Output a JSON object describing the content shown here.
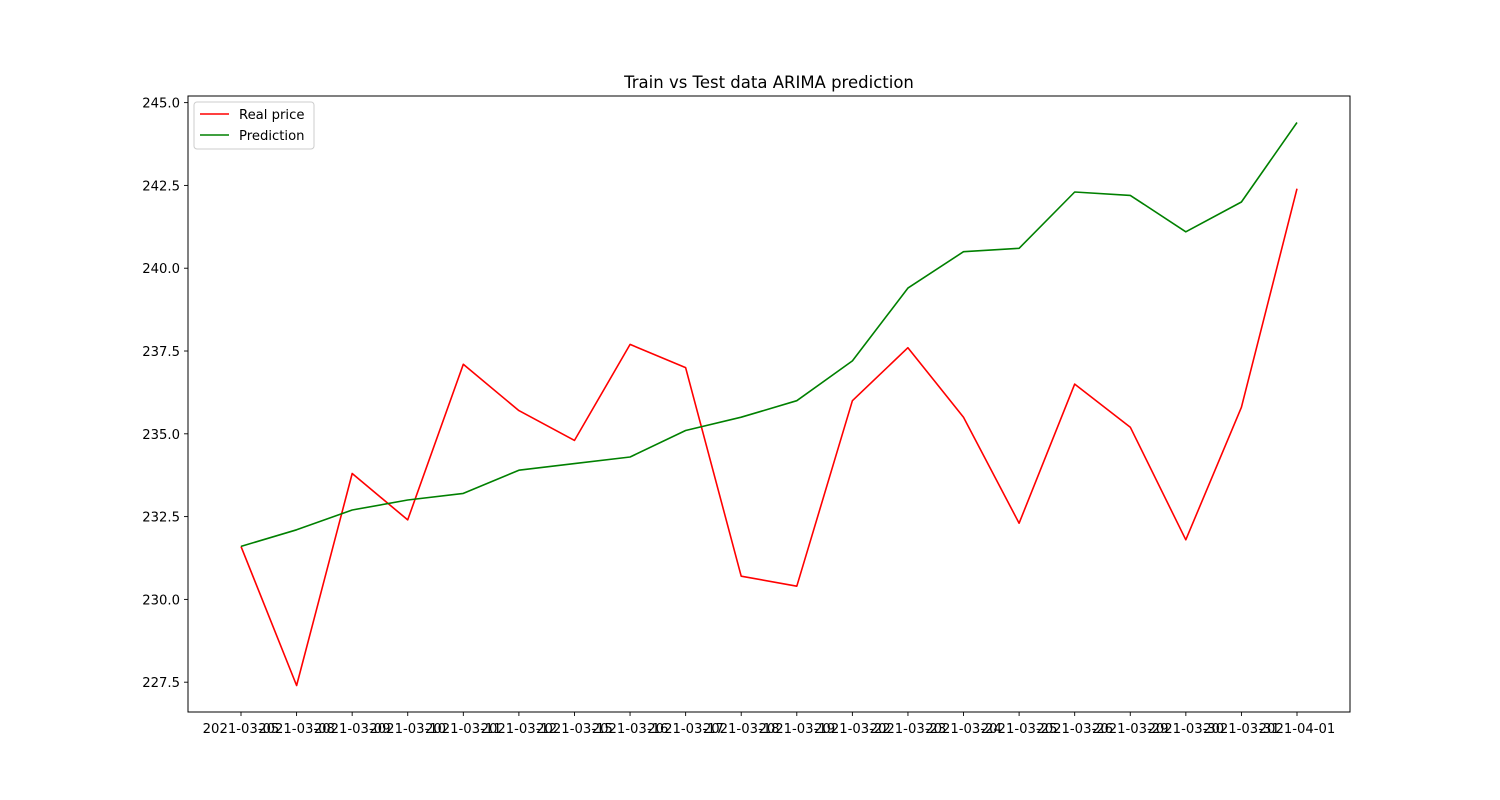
{
  "chart_data": {
    "type": "line",
    "title": "Train vs Test data ARIMA prediction",
    "xlabel": "",
    "ylabel": "",
    "x": [
      "2021-03-05",
      "2021-03-08",
      "2021-03-09",
      "2021-03-10",
      "2021-03-11",
      "2021-03-12",
      "2021-03-15",
      "2021-03-16",
      "2021-03-17",
      "2021-03-18",
      "2021-03-19",
      "2021-03-22",
      "2021-03-23",
      "2021-03-24",
      "2021-03-25",
      "2021-03-26",
      "2021-03-29",
      "2021-03-30",
      "2021-03-31",
      "2021-04-01"
    ],
    "series": [
      {
        "name": "Real price",
        "color": "#ff0000",
        "values": [
          231.6,
          227.4,
          233.8,
          232.4,
          237.1,
          235.7,
          234.8,
          237.7,
          237.0,
          230.7,
          230.4,
          236.0,
          237.6,
          235.5,
          232.3,
          236.5,
          235.2,
          231.8,
          235.8,
          242.4
        ]
      },
      {
        "name": "Prediction",
        "color": "#008000",
        "values": [
          231.6,
          232.1,
          232.7,
          233.0,
          233.2,
          233.9,
          234.1,
          234.3,
          235.1,
          235.5,
          236.0,
          237.2,
          239.4,
          240.5,
          240.6,
          242.3,
          242.2,
          241.1,
          242.0,
          244.4
        ]
      }
    ],
    "ylim": [
      226.6,
      245.2
    ],
    "yticks": [
      227.5,
      230.0,
      232.5,
      235.0,
      237.5,
      240.0,
      242.5,
      245.0
    ],
    "ytick_labels": [
      "227.5",
      "230.0",
      "232.5",
      "235.0",
      "237.5",
      "240.0",
      "242.5",
      "245.0"
    ],
    "grid": false,
    "legend_position": "upper-left"
  }
}
